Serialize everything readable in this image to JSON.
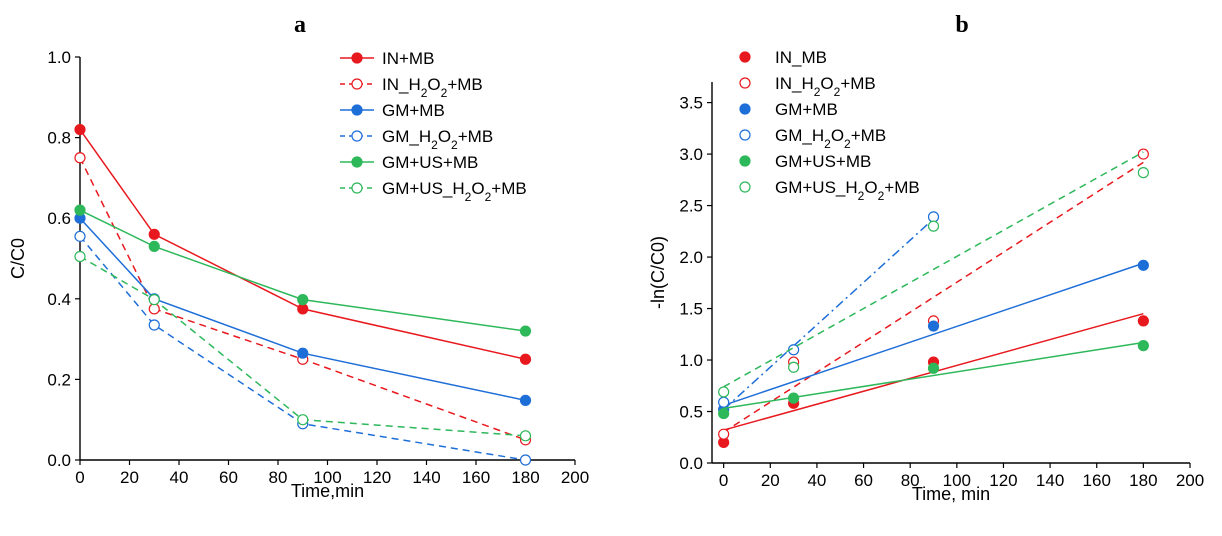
{
  "chart_data": [
    {
      "type": "line",
      "panel_label": "a",
      "xlabel": "Time,min",
      "ylabel": "C/C0",
      "xlim": [
        0,
        200
      ],
      "ylim": [
        0,
        1.0
      ],
      "xticks": [
        0,
        20,
        40,
        60,
        80,
        100,
        120,
        140,
        160,
        180,
        200
      ],
      "yticks": [
        0.0,
        0.2,
        0.4,
        0.6,
        0.8,
        1.0
      ],
      "xtick_labels": [
        "0",
        "20",
        "40",
        "60",
        "80",
        "100",
        "120",
        "140",
        "160",
        "180",
        "200"
      ],
      "ytick_labels": [
        "0.0",
        "0.2",
        "0.4",
        "0.6",
        "0.8",
        "1.0"
      ],
      "grid": false,
      "legend_position": "top-right",
      "x": [
        0,
        30,
        90,
        180
      ],
      "series": [
        {
          "name": "IN+MB",
          "label_parts": [
            [
              "IN+MB",
              ""
            ]
          ],
          "values": [
            0.82,
            0.56,
            0.375,
            0.25
          ],
          "color": "#e8191e",
          "dashed": false,
          "filled": true
        },
        {
          "name": "IN_H2O2+MB",
          "label_parts": [
            [
              "IN_H",
              ""
            ],
            [
              "2",
              "sub"
            ],
            [
              "O",
              ""
            ],
            [
              "2",
              "sub"
            ],
            [
              "+MB",
              ""
            ]
          ],
          "values": [
            0.75,
            0.375,
            0.25,
            0.05
          ],
          "color": "#e8191e",
          "dashed": true,
          "filled": false
        },
        {
          "name": "GM+MB",
          "label_parts": [
            [
              "GM+MB",
              ""
            ]
          ],
          "values": [
            0.6,
            0.4,
            0.265,
            0.148
          ],
          "color": "#1e6ed8",
          "dashed": false,
          "filled": true
        },
        {
          "name": "GM_H2O2+MB",
          "label_parts": [
            [
              "GM_H",
              ""
            ],
            [
              "2",
              "sub"
            ],
            [
              "O",
              ""
            ],
            [
              "2",
              "sub"
            ],
            [
              "+MB",
              ""
            ]
          ],
          "values": [
            0.555,
            0.335,
            0.09,
            0.0
          ],
          "color": "#1e6ed8",
          "dashed": true,
          "filled": false
        },
        {
          "name": "GM+US+MB",
          "label_parts": [
            [
              "GM+US+MB",
              ""
            ]
          ],
          "values": [
            0.62,
            0.53,
            0.398,
            0.32
          ],
          "color": "#2db85a",
          "dashed": false,
          "filled": true
        },
        {
          "name": "GM+US_H2O2+MB",
          "label_parts": [
            [
              "GM+US_H",
              ""
            ],
            [
              "2",
              "sub"
            ],
            [
              "O",
              ""
            ],
            [
              "2",
              "sub"
            ],
            [
              "+MB",
              ""
            ]
          ],
          "values": [
            0.505,
            0.398,
            0.1,
            0.06
          ],
          "color": "#2db85a",
          "dashed": true,
          "filled": false
        }
      ]
    },
    {
      "type": "scatter",
      "panel_label": "b",
      "xlabel": "Time, min",
      "ylabel": "-ln(C/C0)",
      "xlim": [
        -5,
        200
      ],
      "ylim": [
        0,
        3.7
      ],
      "xticks": [
        0,
        20,
        40,
        60,
        80,
        100,
        120,
        140,
        160,
        180,
        200
      ],
      "yticks": [
        0.0,
        0.5,
        1.0,
        1.5,
        2.0,
        2.5,
        3.0,
        3.5
      ],
      "xtick_labels": [
        "0",
        "20",
        "40",
        "60",
        "80",
        "100",
        "120",
        "140",
        "160",
        "180",
        "200"
      ],
      "ytick_labels": [
        "0.0",
        "0.5",
        "1.0",
        "1.5",
        "2.0",
        "2.5",
        "3.0",
        "3.5"
      ],
      "grid": false,
      "legend_position": "top-left",
      "series": [
        {
          "name": "IN_MB",
          "label_parts": [
            [
              "IN_MB",
              ""
            ]
          ],
          "x": [
            0,
            30,
            90,
            180
          ],
          "values": [
            0.2,
            0.58,
            0.98,
            1.38
          ],
          "fit": [
            [
              0,
              0.32
            ],
            [
              180,
              1.45
            ]
          ],
          "color": "#e8191e",
          "filled": true,
          "fit_style": "solid"
        },
        {
          "name": "IN_H2O2+MB",
          "label_parts": [
            [
              "IN_H",
              ""
            ],
            [
              "2",
              "sub"
            ],
            [
              "O",
              ""
            ],
            [
              "2",
              "sub"
            ],
            [
              "+MB",
              ""
            ]
          ],
          "x": [
            0,
            30,
            90,
            180
          ],
          "values": [
            0.28,
            0.98,
            1.38,
            3.0
          ],
          "fit": [
            [
              0,
              0.3
            ],
            [
              180,
              2.92
            ]
          ],
          "color": "#e8191e",
          "filled": false,
          "fit_style": "dashed"
        },
        {
          "name": "GM+MB",
          "label_parts": [
            [
              "GM+MB",
              ""
            ]
          ],
          "x": [
            0,
            90,
            180
          ],
          "values": [
            0.52,
            1.33,
            1.92
          ],
          "fit": [
            [
              0,
              0.56
            ],
            [
              180,
              1.94
            ]
          ],
          "color": "#1e6ed8",
          "filled": true,
          "fit_style": "solid"
        },
        {
          "name": "GM_H2O2+MB",
          "label_parts": [
            [
              "GM_H",
              ""
            ],
            [
              "2",
              "sub"
            ],
            [
              "O",
              ""
            ],
            [
              "2",
              "sub"
            ],
            [
              "+MB",
              ""
            ]
          ],
          "x": [
            0,
            30,
            90
          ],
          "values": [
            0.59,
            1.1,
            2.39
          ],
          "fit": [
            [
              0,
              0.52
            ],
            [
              90,
              2.37
            ]
          ],
          "color": "#1e6ed8",
          "filled": false,
          "fit_style": "dashdot"
        },
        {
          "name": "GM+US+MB",
          "label_parts": [
            [
              "GM+US+MB",
              ""
            ]
          ],
          "x": [
            0,
            30,
            90,
            180
          ],
          "values": [
            0.48,
            0.63,
            0.92,
            1.14
          ],
          "fit": [
            [
              0,
              0.53
            ],
            [
              180,
              1.17
            ]
          ],
          "color": "#2db85a",
          "filled": true,
          "fit_style": "solid"
        },
        {
          "name": "GM+US_H2O2+MB",
          "label_parts": [
            [
              "GM+US_H",
              ""
            ],
            [
              "2",
              "sub"
            ],
            [
              "O",
              ""
            ],
            [
              "2",
              "sub"
            ],
            [
              "+MB",
              ""
            ]
          ],
          "x": [
            0,
            30,
            90,
            180
          ],
          "values": [
            0.69,
            0.93,
            2.3,
            2.82
          ],
          "fit": [
            [
              0,
              0.74
            ],
            [
              180,
              3.02
            ]
          ],
          "color": "#2db85a",
          "filled": false,
          "fit_style": "dashed"
        }
      ]
    }
  ]
}
